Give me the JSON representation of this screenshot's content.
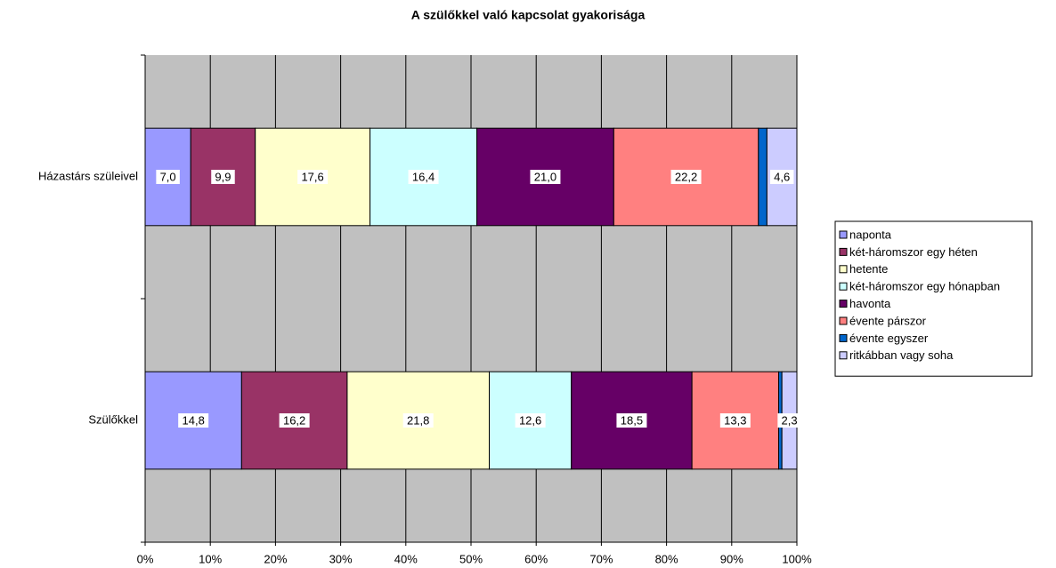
{
  "chart_data": {
    "type": "stacked_bar_horizontal",
    "title": "A szülőkkel való kapcsolat gyakorisága",
    "categories": [
      "Házastárs szüleivel",
      "Szülőkkel"
    ],
    "series": [
      {
        "name": "naponta",
        "color": "#9999ff",
        "values": [
          7.0,
          14.8
        ],
        "value_labels": [
          "7,0",
          "14,8"
        ]
      },
      {
        "name": "két-háromszor egy héten",
        "color": "#993366",
        "values": [
          9.9,
          16.2
        ],
        "value_labels": [
          "9,9",
          "16,2"
        ]
      },
      {
        "name": "hetente",
        "color": "#ffffcc",
        "values": [
          17.6,
          21.8
        ],
        "value_labels": [
          "17,6",
          "21,8"
        ]
      },
      {
        "name": "két-háromszor egy hónapban",
        "color": "#ccffff",
        "values": [
          16.4,
          12.6
        ],
        "value_labels": [
          "16,4",
          "12,6"
        ]
      },
      {
        "name": "havonta",
        "color": "#660066",
        "values": [
          21.0,
          18.5
        ],
        "value_labels": [
          "21,0",
          "18,5"
        ]
      },
      {
        "name": "évente párszor",
        "color": "#ff8080",
        "values": [
          22.2,
          13.3
        ],
        "value_labels": [
          "22,2",
          "13,3"
        ]
      },
      {
        "name": "évente egyszer",
        "color": "#0066cc",
        "values": [
          1.3,
          0.5
        ],
        "value_labels": [
          null,
          null
        ]
      },
      {
        "name": "ritkábban vagy soha",
        "color": "#ccccff",
        "values": [
          4.6,
          2.3
        ],
        "value_labels": [
          "4,6",
          "2,3"
        ]
      }
    ],
    "xlim": [
      0,
      100
    ],
    "xticks": [
      {
        "value": 0,
        "label": "0%"
      },
      {
        "value": 10,
        "label": "10%"
      },
      {
        "value": 20,
        "label": "20%"
      },
      {
        "value": 30,
        "label": "30%"
      },
      {
        "value": 40,
        "label": "40%"
      },
      {
        "value": 50,
        "label": "50%"
      },
      {
        "value": 60,
        "label": "60%"
      },
      {
        "value": 70,
        "label": "70%"
      },
      {
        "value": 80,
        "label": "80%"
      },
      {
        "value": 90,
        "label": "90%"
      },
      {
        "value": 100,
        "label": "100%"
      }
    ],
    "grid": true,
    "legend": "right"
  }
}
